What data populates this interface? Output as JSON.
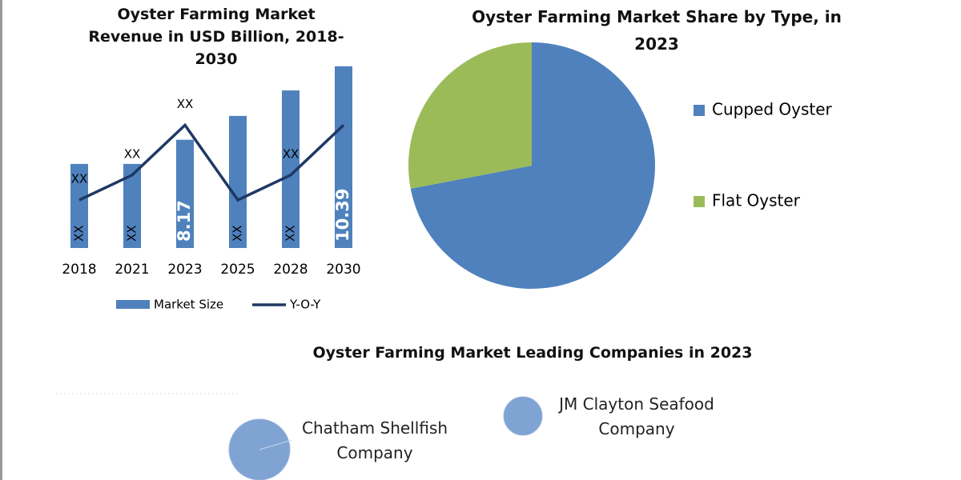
{
  "chart_data": [
    {
      "type": "bar",
      "title": "Oyster Farming Market Revenue in USD Billion, 2018-2030",
      "categories": [
        "2018",
        "2021",
        "2023",
        "2025",
        "2028",
        "2030"
      ],
      "ylim": [
        4.9,
        10.7
      ],
      "y2lim": [
        0,
        100
      ],
      "series": [
        {
          "name": "Market Size",
          "type": "bar",
          "color": "#4f81bd",
          "values": [
            7.44,
            7.44,
            8.17,
            8.89,
            9.66,
            10.39
          ],
          "value_labels": [
            "XX",
            "XX",
            "8.17",
            "XX",
            "XX",
            "10.39"
          ]
        },
        {
          "name": "Y-O-Y",
          "type": "line",
          "axis": "y2",
          "color": "#1f3864",
          "values": [
            25,
            38,
            64,
            25,
            38,
            64
          ],
          "value_labels": [
            "XX",
            "XX",
            "XX",
            null,
            "XX",
            null
          ]
        }
      ]
    },
    {
      "type": "pie",
      "title": "Oyster Farming Market Share by Type, in 2023",
      "categories": [
        "Cupped Oyster",
        "Flat Oyster"
      ],
      "values": [
        72,
        28
      ],
      "colors": [
        "#4f81bd",
        "#9bbb59"
      ]
    },
    {
      "type": "bubble",
      "title": "Oyster Farming Market Leading Companies in 2023",
      "categories": [
        "Chatham Shellfish Company",
        "JM Clayton Seafood Company"
      ],
      "color": "#7fa3d3"
    }
  ]
}
